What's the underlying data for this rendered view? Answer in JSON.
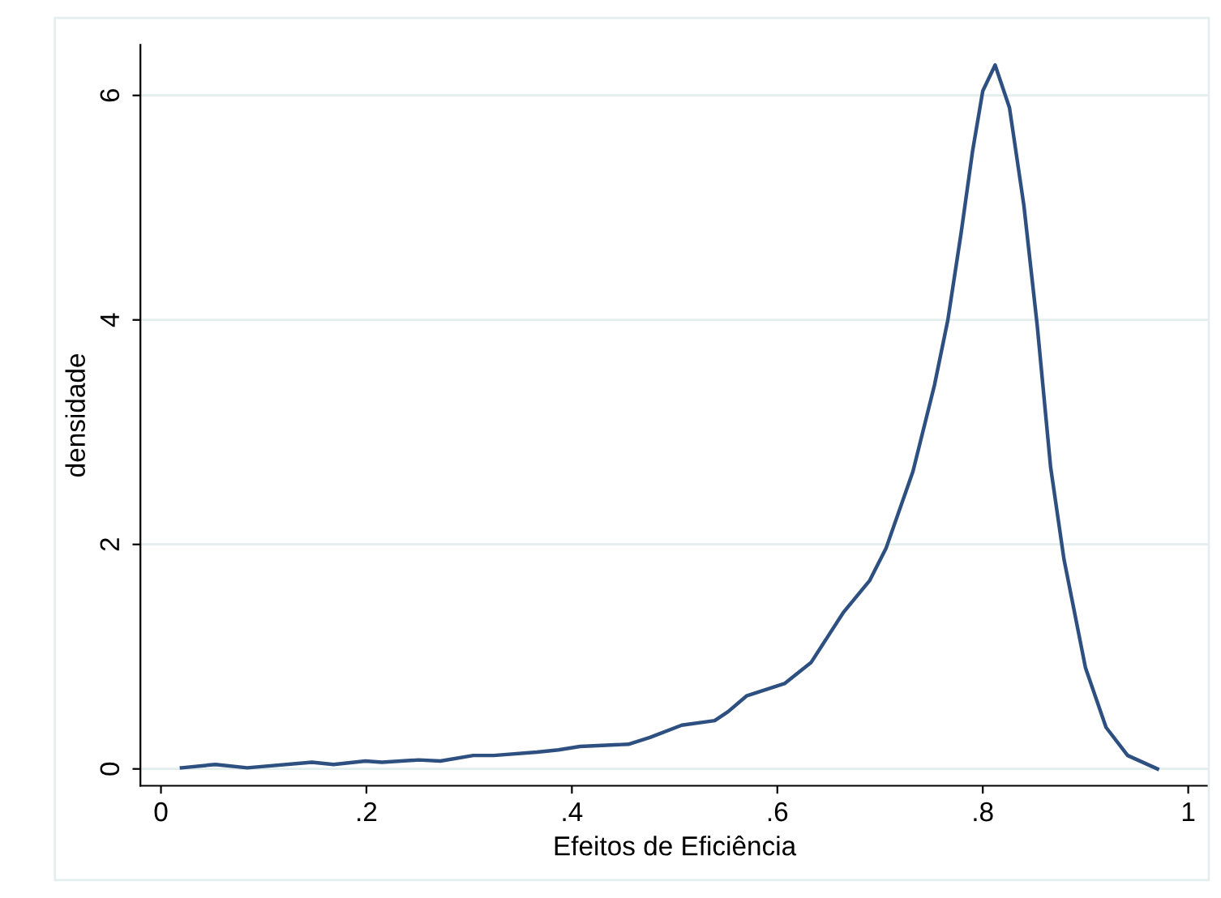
{
  "chart_data": {
    "type": "line",
    "xlabel": "Efeitos de Eficiência",
    "ylabel": "densidade",
    "x": [
      0.02,
      0.053,
      0.084,
      0.147,
      0.168,
      0.199,
      0.215,
      0.251,
      0.272,
      0.304,
      0.324,
      0.366,
      0.387,
      0.408,
      0.455,
      0.476,
      0.507,
      0.539,
      0.552,
      0.57,
      0.607,
      0.633,
      0.664,
      0.69,
      0.706,
      0.732,
      0.753,
      0.766,
      0.779,
      0.79,
      0.8,
      0.812,
      0.826,
      0.84,
      0.853,
      0.866,
      0.879,
      0.9,
      0.92,
      0.941,
      0.97
    ],
    "series": [
      {
        "color": "#2d5080",
        "values": [
          0.01,
          0.04,
          0.01,
          0.06,
          0.04,
          0.07,
          0.06,
          0.08,
          0.07,
          0.12,
          0.12,
          0.15,
          0.17,
          0.2,
          0.22,
          0.28,
          0.39,
          0.43,
          0.51,
          0.65,
          0.76,
          0.95,
          1.39,
          1.68,
          1.97,
          2.65,
          3.42,
          4.0,
          4.78,
          5.5,
          6.04,
          6.27,
          5.89,
          5.02,
          3.95,
          2.69,
          1.87,
          0.9,
          0.37,
          0.12,
          0.0
        ]
      }
    ],
    "xlim": [
      -0.02,
      1.02
    ],
    "ylim": [
      -0.15,
      6.45
    ],
    "xticks": [
      0,
      {
        "value": 0.2,
        "label": ".2"
      },
      {
        "value": 0.4,
        "label": ".4"
      },
      {
        "value": 0.6,
        "label": ".6"
      },
      {
        "value": 0.8,
        "label": ".8"
      },
      1
    ],
    "yticks": [
      0,
      2,
      4,
      6
    ],
    "grid": "y",
    "line_style": "solid",
    "marker": "none"
  }
}
